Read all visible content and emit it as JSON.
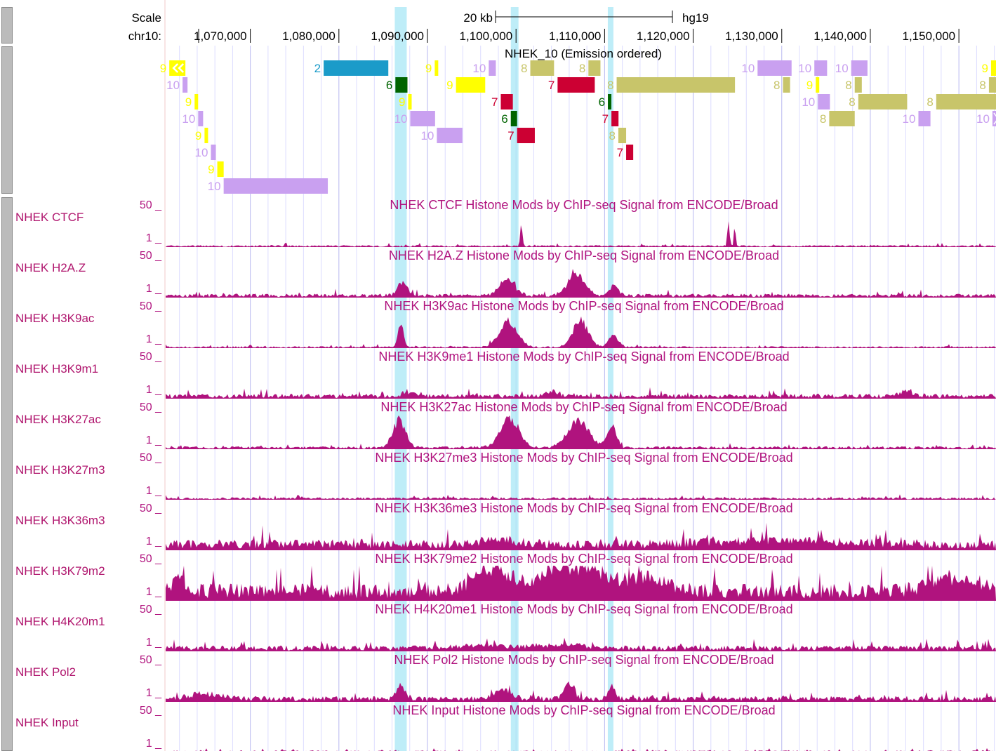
{
  "ruler": {
    "scale_label": "Scale",
    "chrom_label": "chr10:",
    "scale_bar_label": "20 kb",
    "assembly": "hg19",
    "ticks": [
      {
        "pos": 1070000,
        "label": "1,070,000"
      },
      {
        "pos": 1080000,
        "label": "1,080,000"
      },
      {
        "pos": 1090000,
        "label": "1,090,000"
      },
      {
        "pos": 1100000,
        "label": "1,100,000"
      },
      {
        "pos": 1110000,
        "label": "1,110,000"
      },
      {
        "pos": 1120000,
        "label": "1,120,000"
      },
      {
        "pos": 1130000,
        "label": "1,130,000"
      },
      {
        "pos": 1140000,
        "label": "1,140,000"
      },
      {
        "pos": 1150000,
        "label": "1,150,000"
      }
    ]
  },
  "view": {
    "start": 1060440,
    "end": 1154190
  },
  "highlights": [
    {
      "start": 1086310,
      "end": 1087660
    },
    {
      "start": 1099410,
      "end": 1100280
    },
    {
      "start": 1110360,
      "end": 1110920
    }
  ],
  "segmentation": {
    "title": "NHEK_10 (Emission ordered)",
    "state_colors": {
      "2": "#1b9bc9",
      "6": "#006400",
      "7": "#cc0033",
      "8": "#c8c56a",
      "9": "#ffff00",
      "10": "#c9a0f0"
    },
    "segments": [
      {
        "row": 0,
        "start": 1060850,
        "end": 1062670,
        "state": "9",
        "dir": "left"
      },
      {
        "row": 0,
        "start": 1078280,
        "end": 1085580,
        "state": "2"
      },
      {
        "row": 0,
        "start": 1090820,
        "end": 1091140,
        "state": "9"
      },
      {
        "row": 0,
        "start": 1096920,
        "end": 1097720,
        "state": "10"
      },
      {
        "row": 0,
        "start": 1101610,
        "end": 1104290,
        "state": "8"
      },
      {
        "row": 0,
        "start": 1108170,
        "end": 1109530,
        "state": "8"
      },
      {
        "row": 0,
        "start": 1127270,
        "end": 1131110,
        "state": "10"
      },
      {
        "row": 0,
        "start": 1133680,
        "end": 1135120,
        "state": "10"
      },
      {
        "row": 0,
        "start": 1137840,
        "end": 1139680,
        "state": "10"
      },
      {
        "row": 0,
        "start": 1153630,
        "end": 1154190,
        "state": "9"
      },
      {
        "row": 1,
        "start": 1062350,
        "end": 1062910,
        "state": "10"
      },
      {
        "row": 1,
        "start": 1086380,
        "end": 1087740,
        "state": "6"
      },
      {
        "row": 1,
        "start": 1093220,
        "end": 1096520,
        "state": "9"
      },
      {
        "row": 1,
        "start": 1104690,
        "end": 1108890,
        "state": "7"
      },
      {
        "row": 1,
        "start": 1111360,
        "end": 1124720,
        "state": "8"
      },
      {
        "row": 1,
        "start": 1130140,
        "end": 1130940,
        "state": "8"
      },
      {
        "row": 1,
        "start": 1133840,
        "end": 1134160,
        "state": "9"
      },
      {
        "row": 1,
        "start": 1138240,
        "end": 1139040,
        "state": "8"
      },
      {
        "row": 1,
        "start": 1153390,
        "end": 1154190,
        "state": "8"
      },
      {
        "row": 2,
        "start": 1063710,
        "end": 1063950,
        "state": "9"
      },
      {
        "row": 2,
        "start": 1087820,
        "end": 1088060,
        "state": "9"
      },
      {
        "row": 2,
        "start": 1098280,
        "end": 1099640,
        "state": "7"
      },
      {
        "row": 2,
        "start": 1110370,
        "end": 1110700,
        "state": "6"
      },
      {
        "row": 2,
        "start": 1134080,
        "end": 1135440,
        "state": "10"
      },
      {
        "row": 2,
        "start": 1138640,
        "end": 1144160,
        "state": "8"
      },
      {
        "row": 2,
        "start": 1147440,
        "end": 1154190,
        "state": "8"
      },
      {
        "row": 3,
        "start": 1064110,
        "end": 1064670,
        "state": "10"
      },
      {
        "row": 3,
        "start": 1088060,
        "end": 1090860,
        "state": "10"
      },
      {
        "row": 3,
        "start": 1099410,
        "end": 1100120,
        "state": "6"
      },
      {
        "row": 3,
        "start": 1110770,
        "end": 1111570,
        "state": "7"
      },
      {
        "row": 3,
        "start": 1135360,
        "end": 1138240,
        "state": "8"
      },
      {
        "row": 3,
        "start": 1145430,
        "end": 1146790,
        "state": "10"
      },
      {
        "row": 3,
        "start": 1153790,
        "end": 1154190,
        "state": "10",
        "dir": "right"
      },
      {
        "row": 4,
        "start": 1064830,
        "end": 1065230,
        "state": "9"
      },
      {
        "row": 4,
        "start": 1091060,
        "end": 1093940,
        "state": "10"
      },
      {
        "row": 4,
        "start": 1100120,
        "end": 1102120,
        "state": "7"
      },
      {
        "row": 4,
        "start": 1111550,
        "end": 1112430,
        "state": "8"
      },
      {
        "row": 5,
        "start": 1065550,
        "end": 1066110,
        "state": "10"
      },
      {
        "row": 5,
        "start": 1112430,
        "end": 1113230,
        "state": "7"
      },
      {
        "row": 6,
        "start": 1066270,
        "end": 1066990,
        "state": "9"
      },
      {
        "row": 7,
        "start": 1066990,
        "end": 1078750,
        "state": "10"
      }
    ]
  },
  "signal": {
    "color": "#b0137e",
    "max_label": "50 _",
    "min_label": "1 _",
    "tracks": [
      {
        "label": "NHEK CTCF",
        "title": "NHEK CTCF Histone Mods by ChIP-seq Signal from ENCODE/Broad",
        "baseline": 0.04,
        "peaks": [
          {
            "pos": 1100600,
            "width": 160,
            "height": 0.8
          },
          {
            "pos": 1124000,
            "width": 180,
            "height": 0.72
          },
          {
            "pos": 1124700,
            "width": 140,
            "height": 0.6
          }
        ]
      },
      {
        "label": "NHEK H2A.Z",
        "title": "NHEK H2A.Z Histone Mods by ChIP-seq Signal from ENCODE/Broad",
        "baseline": 0.08,
        "peaks": [
          {
            "pos": 1087200,
            "width": 700,
            "height": 0.45
          },
          {
            "pos": 1099000,
            "width": 1200,
            "height": 0.5
          },
          {
            "pos": 1106800,
            "width": 1300,
            "height": 0.7
          },
          {
            "pos": 1111000,
            "width": 700,
            "height": 0.3
          }
        ]
      },
      {
        "label": "NHEK H3K9ac",
        "title": "NHEK H3K9ac Histone Mods by ChIP-seq Signal from ENCODE/Broad",
        "baseline": 0.04,
        "peaks": [
          {
            "pos": 1087000,
            "width": 450,
            "height": 0.72
          },
          {
            "pos": 1099100,
            "width": 1400,
            "height": 0.8
          },
          {
            "pos": 1107300,
            "width": 1200,
            "height": 0.8
          },
          {
            "pos": 1111000,
            "width": 800,
            "height": 0.35
          }
        ]
      },
      {
        "label": "NHEK H3K9m1",
        "title": "NHEK H3K9me1 Histone Mods by ChIP-seq Signal from ENCODE/Broad",
        "baseline": 0.1,
        "peaks": [
          {
            "pos": 1088000,
            "width": 600,
            "height": 0.12
          },
          {
            "pos": 1104000,
            "width": 800,
            "height": 0.14
          },
          {
            "pos": 1144000,
            "width": 900,
            "height": 0.16
          }
        ]
      },
      {
        "label": "NHEK H3K27ac",
        "title": "NHEK H3K27ac Histone Mods by ChIP-seq Signal from ENCODE/Broad",
        "baseline": 0.06,
        "peaks": [
          {
            "pos": 1086800,
            "width": 1000,
            "height": 0.85
          },
          {
            "pos": 1099300,
            "width": 1500,
            "height": 0.85
          },
          {
            "pos": 1107000,
            "width": 1700,
            "height": 0.8
          },
          {
            "pos": 1110800,
            "width": 700,
            "height": 0.75
          }
        ]
      },
      {
        "label": "NHEK H3K27m3",
        "title": "NHEK H3K27me3 Histone Mods by ChIP-seq Signal from ENCODE/Broad",
        "baseline": 0.05,
        "peaks": []
      },
      {
        "label": "NHEK H3K36m3",
        "title": "NHEK H3K36me3 Histone Mods by ChIP-seq Signal from ENCODE/Broad",
        "baseline": 0.22,
        "peaks": [
          {
            "pos": 1098000,
            "width": 3000,
            "height": 0.15
          },
          {
            "pos": 1130000,
            "width": 10000,
            "height": 0.12
          }
        ]
      },
      {
        "label": "NHEK H3K79m2",
        "title": "NHEK H3K79me2 Histone Mods by ChIP-seq Signal from ENCODE/Broad",
        "baseline": 0.35,
        "peaks": [
          {
            "pos": 1062000,
            "width": 1200,
            "height": 0.35
          },
          {
            "pos": 1097500,
            "width": 3000,
            "height": 0.7
          },
          {
            "pos": 1104700,
            "width": 2600,
            "height": 0.7
          },
          {
            "pos": 1108500,
            "width": 2000,
            "height": 0.65
          },
          {
            "pos": 1114000,
            "width": 4000,
            "height": 0.4
          },
          {
            "pos": 1150000,
            "width": 4000,
            "height": 0.4
          }
        ]
      },
      {
        "label": "NHEK H4K20m1",
        "title": "NHEK H4K20me1 Histone Mods by ChIP-seq Signal from ENCODE/Broad",
        "baseline": 0.12,
        "peaks": [
          {
            "pos": 1096000,
            "width": 3000,
            "height": 0.1
          },
          {
            "pos": 1105000,
            "width": 4000,
            "height": 0.1
          }
        ]
      },
      {
        "label": "NHEK Pol2",
        "title": "NHEK Pol2 Histone Mods by ChIP-seq Signal from ENCODE/Broad",
        "baseline": 0.12,
        "peaks": [
          {
            "pos": 1087000,
            "width": 600,
            "height": 0.4
          },
          {
            "pos": 1098500,
            "width": 1300,
            "height": 0.3
          },
          {
            "pos": 1106000,
            "width": 800,
            "height": 0.45
          },
          {
            "pos": 1110800,
            "width": 500,
            "height": 0.4
          },
          {
            "pos": 1065000,
            "width": 2500,
            "height": 0.15
          }
        ]
      },
      {
        "label": "NHEK Input",
        "title": "NHEK Input Histone Mods by ChIP-seq Signal from ENCODE/Broad",
        "baseline": 0.04,
        "peaks": []
      }
    ]
  }
}
